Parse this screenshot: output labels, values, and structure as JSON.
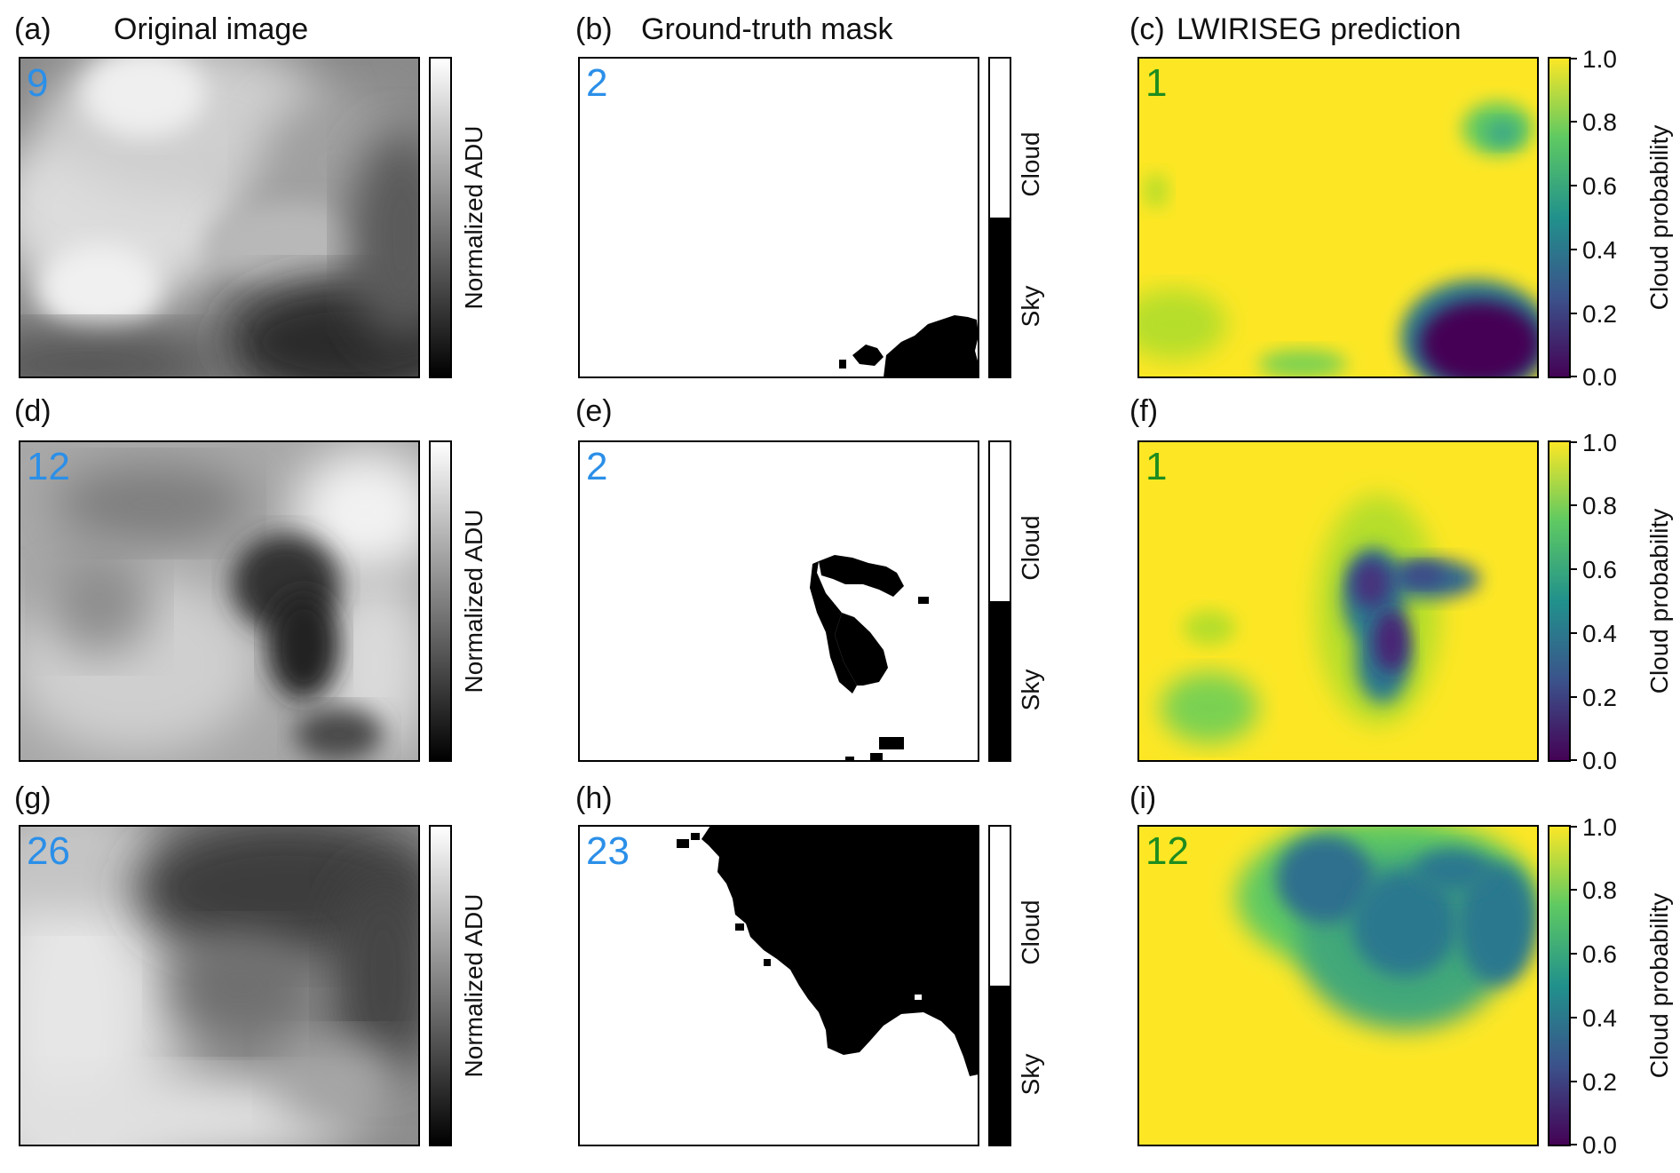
{
  "figure": {
    "column_titles": [
      "Original image",
      "Ground-truth mask",
      "LWIRISEG prediction"
    ],
    "colors": {
      "count_blue": "#2b8fe8",
      "count_green": "#1e8c1e",
      "viridis_high": "#fde725",
      "viridis_low": "#440154"
    },
    "colorbars": {
      "original": {
        "label": "Normalized ADU",
        "colormap": "gray"
      },
      "mask": {
        "labels": [
          "Cloud",
          "Sky"
        ],
        "colormap": "binary"
      },
      "prediction": {
        "label": "Cloud probability",
        "colormap": "viridis",
        "ticks": [
          "1.0",
          "0.8",
          "0.6",
          "0.4",
          "0.2",
          "0.0"
        ]
      }
    },
    "rows": [
      {
        "panels": [
          {
            "tag": "(a)",
            "count": "9"
          },
          {
            "tag": "(b)",
            "count": "2"
          },
          {
            "tag": "(c)",
            "count": "1"
          }
        ]
      },
      {
        "panels": [
          {
            "tag": "(d)",
            "count": "12"
          },
          {
            "tag": "(e)",
            "count": "2"
          },
          {
            "tag": "(f)",
            "count": "1"
          }
        ]
      },
      {
        "panels": [
          {
            "tag": "(g)",
            "count": "26"
          },
          {
            "tag": "(h)",
            "count": "23"
          },
          {
            "tag": "(i)",
            "count": "12"
          }
        ]
      }
    ]
  }
}
